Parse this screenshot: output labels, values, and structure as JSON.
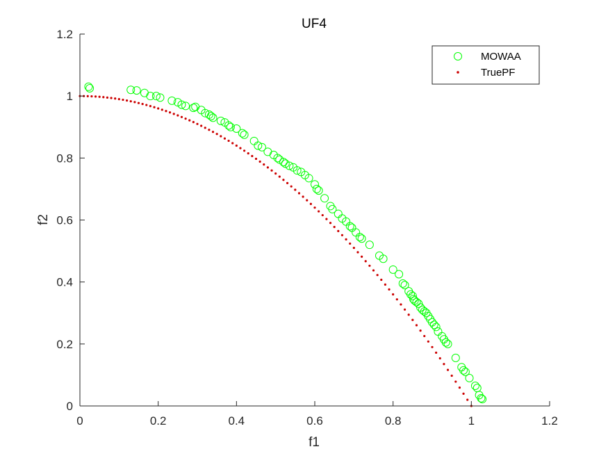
{
  "chart_data": {
    "type": "scatter",
    "title": "UF4",
    "xlabel": "f1",
    "ylabel": "f2",
    "xlim": [
      0,
      1.2
    ],
    "ylim": [
      0,
      1.2
    ],
    "xticks": [
      "0",
      "0.2",
      "0.4",
      "0.6",
      "0.8",
      "1",
      "1.2"
    ],
    "yticks": [
      "0",
      "0.2",
      "0.4",
      "0.6",
      "0.8",
      "1",
      "1.2"
    ],
    "grid": false,
    "legend_position": "top-right",
    "series": [
      {
        "name": "MOWAA",
        "marker": "open-circle",
        "color": "#00ff00",
        "points": [
          [
            0.022,
            1.03
          ],
          [
            0.025,
            1.025
          ],
          [
            0.13,
            1.02
          ],
          [
            0.145,
            1.018
          ],
          [
            0.165,
            1.01
          ],
          [
            0.18,
            1.0
          ],
          [
            0.195,
            1.0
          ],
          [
            0.205,
            0.995
          ],
          [
            0.235,
            0.985
          ],
          [
            0.25,
            0.98
          ],
          [
            0.26,
            0.972
          ],
          [
            0.27,
            0.968
          ],
          [
            0.29,
            0.962
          ],
          [
            0.295,
            0.965
          ],
          [
            0.31,
            0.955
          ],
          [
            0.32,
            0.945
          ],
          [
            0.33,
            0.94
          ],
          [
            0.335,
            0.935
          ],
          [
            0.34,
            0.93
          ],
          [
            0.36,
            0.92
          ],
          [
            0.37,
            0.915
          ],
          [
            0.38,
            0.905
          ],
          [
            0.385,
            0.9
          ],
          [
            0.4,
            0.895
          ],
          [
            0.415,
            0.88
          ],
          [
            0.42,
            0.875
          ],
          [
            0.445,
            0.855
          ],
          [
            0.455,
            0.84
          ],
          [
            0.465,
            0.835
          ],
          [
            0.48,
            0.82
          ],
          [
            0.495,
            0.81
          ],
          [
            0.505,
            0.8
          ],
          [
            0.51,
            0.795
          ],
          [
            0.52,
            0.787
          ],
          [
            0.525,
            0.782
          ],
          [
            0.535,
            0.775
          ],
          [
            0.545,
            0.77
          ],
          [
            0.555,
            0.76
          ],
          [
            0.565,
            0.755
          ],
          [
            0.575,
            0.745
          ],
          [
            0.585,
            0.735
          ],
          [
            0.6,
            0.715
          ],
          [
            0.605,
            0.7
          ],
          [
            0.61,
            0.695
          ],
          [
            0.625,
            0.67
          ],
          [
            0.64,
            0.645
          ],
          [
            0.645,
            0.635
          ],
          [
            0.66,
            0.62
          ],
          [
            0.67,
            0.605
          ],
          [
            0.68,
            0.595
          ],
          [
            0.69,
            0.58
          ],
          [
            0.695,
            0.575
          ],
          [
            0.705,
            0.56
          ],
          [
            0.715,
            0.545
          ],
          [
            0.72,
            0.54
          ],
          [
            0.74,
            0.52
          ],
          [
            0.765,
            0.485
          ],
          [
            0.775,
            0.475
          ],
          [
            0.8,
            0.44
          ],
          [
            0.815,
            0.425
          ],
          [
            0.825,
            0.395
          ],
          [
            0.83,
            0.39
          ],
          [
            0.84,
            0.37
          ],
          [
            0.845,
            0.36
          ],
          [
            0.85,
            0.355
          ],
          [
            0.852,
            0.345
          ],
          [
            0.855,
            0.34
          ],
          [
            0.86,
            0.335
          ],
          [
            0.865,
            0.33
          ],
          [
            0.87,
            0.318
          ],
          [
            0.875,
            0.31
          ],
          [
            0.88,
            0.305
          ],
          [
            0.885,
            0.3
          ],
          [
            0.89,
            0.29
          ],
          [
            0.895,
            0.28
          ],
          [
            0.9,
            0.27
          ],
          [
            0.905,
            0.262
          ],
          [
            0.91,
            0.255
          ],
          [
            0.915,
            0.24
          ],
          [
            0.925,
            0.225
          ],
          [
            0.93,
            0.215
          ],
          [
            0.935,
            0.205
          ],
          [
            0.94,
            0.2
          ],
          [
            0.96,
            0.155
          ],
          [
            0.975,
            0.125
          ],
          [
            0.98,
            0.115
          ],
          [
            0.985,
            0.11
          ],
          [
            0.995,
            0.09
          ],
          [
            1.01,
            0.065
          ],
          [
            1.015,
            0.058
          ],
          [
            1.02,
            0.035
          ],
          [
            1.025,
            0.025
          ],
          [
            1.028,
            0.022
          ]
        ]
      },
      {
        "name": "TruePF",
        "marker": "dot",
        "color": "#cc0000",
        "curve": "f2 = 1 - f1^2",
        "points": []
      }
    ]
  }
}
